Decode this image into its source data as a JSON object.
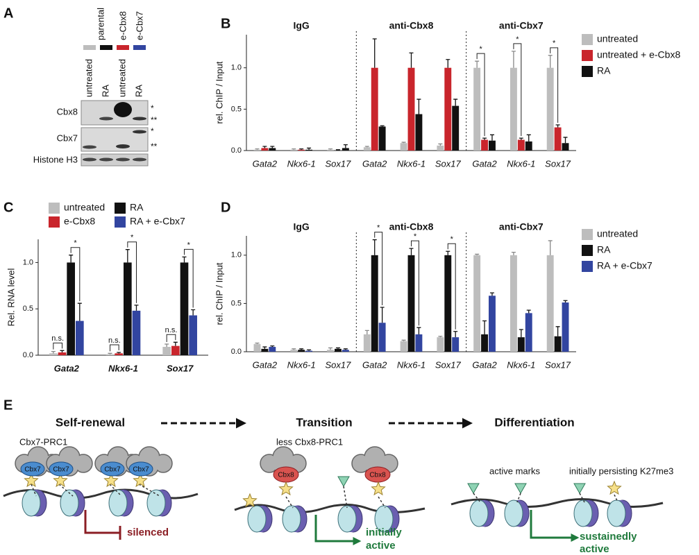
{
  "panel_labels": [
    "A",
    "B",
    "C",
    "D",
    "E"
  ],
  "panel_a": {
    "groups": [
      "parental",
      "e-Cbx8",
      "e-Cbx7"
    ],
    "lanes": [
      "untreated",
      "RA",
      "untreated",
      "RA"
    ],
    "rows": [
      "Cbx8",
      "Cbx7",
      "Histone H3"
    ],
    "markers": [
      "*",
      "**",
      "*",
      "**"
    ]
  },
  "chart_data": [
    {
      "type": "bar",
      "ylabel": "rel. ChIP / Input",
      "legend": "right",
      "groups": [
        "IgG",
        "anti-Cbx8",
        "anti-Cbx7"
      ],
      "categories": [
        "Gata2",
        "Nkx6-1",
        "Sox17",
        "Gata2",
        "Nkx6-1",
        "Sox17",
        "Gata2",
        "Nkx6-1",
        "Sox17"
      ],
      "ylim": [
        0,
        1.4
      ],
      "yticks": [
        {
          "value": 0,
          "label": "0.0"
        },
        0.5,
        {
          "value": 1,
          "label": "1.0"
        }
      ],
      "series": [
        {
          "name": "untreated",
          "color": "#bdbdbd",
          "values": [
            0.01,
            0.01,
            0.01,
            0.04,
            0.09,
            0.06,
            1.0,
            1.0,
            1.0
          ],
          "errors": [
            0.01,
            0.01,
            0.01,
            0.01,
            0.01,
            0.02,
            0.08,
            0.2,
            0.15
          ]
        },
        {
          "name": "untreated + e-Cbx8",
          "color": "#c9252c",
          "values": [
            0.03,
            0.01,
            0.0,
            1.0,
            1.0,
            1.0,
            0.13,
            0.13,
            0.28
          ],
          "errors": [
            0.02,
            0.01,
            0.01,
            0.35,
            0.18,
            0.1,
            0.02,
            0.02,
            0.03
          ]
        },
        {
          "name": "RA",
          "color": "#111111",
          "values": [
            0.03,
            0.01,
            0.03,
            0.29,
            0.44,
            0.54,
            0.12,
            0.11,
            0.09
          ],
          "errors": [
            0.02,
            0.02,
            0.04,
            0.01,
            0.18,
            0.08,
            0.07,
            0.08,
            0.07
          ]
        }
      ],
      "significance": [
        {
          "between": [
            "untreated",
            "untreated + e-Cbx8"
          ],
          "labels": [
            null,
            null,
            null,
            null,
            null,
            null,
            "*",
            "*",
            "*"
          ]
        }
      ]
    },
    {
      "type": "bar",
      "ylabel": "Rel. RNA level",
      "legend": "top",
      "categories": [
        "Gata2",
        "Nkx6-1",
        "Sox17"
      ],
      "ylim": [
        0,
        1.25
      ],
      "yticks": [
        {
          "value": 0,
          "label": "0.0"
        },
        0.5,
        {
          "value": 1,
          "label": "1.0"
        }
      ],
      "series": [
        {
          "name": "untreated",
          "color": "#bdbdbd",
          "values": [
            0.02,
            0.01,
            0.09
          ],
          "errors": [
            0.02,
            0.01,
            0.03
          ]
        },
        {
          "name": "e-Cbx8",
          "color": "#c9252c",
          "values": [
            0.03,
            0.02,
            0.1
          ],
          "errors": [
            0.02,
            0.01,
            0.04
          ]
        },
        {
          "name": "RA",
          "color": "#111111",
          "values": [
            1.0,
            1.0,
            1.0
          ],
          "errors": [
            0.08,
            0.14,
            0.06
          ]
        },
        {
          "name": "RA + e-Cbx7",
          "color": "#3245a0",
          "values": [
            0.37,
            0.48,
            0.43
          ],
          "errors": [
            0.19,
            0.06,
            0.06
          ]
        }
      ],
      "significance": [
        {
          "between": [
            "untreated",
            "e-Cbx8"
          ],
          "labels": [
            "n.s.",
            "n.s.",
            "n.s."
          ]
        },
        {
          "between": [
            "RA",
            "RA + e-Cbx7"
          ],
          "labels": [
            "*",
            "*",
            "*"
          ]
        }
      ]
    },
    {
      "type": "bar",
      "ylabel": "rel. ChIP / Input",
      "legend": "right",
      "groups": [
        "IgG",
        "anti-Cbx8",
        "anti-Cbx7"
      ],
      "categories": [
        "Gata2",
        "Nkx6-1",
        "Sox17",
        "Gata2",
        "Nkx6-1",
        "Sox17",
        "Gata2",
        "Nkx6-1",
        "Sox17"
      ],
      "ylim": [
        0,
        1.2
      ],
      "yticks": [
        {
          "value": 0,
          "label": "0.0"
        },
        0.5,
        {
          "value": 1,
          "label": "1.0"
        }
      ],
      "series": [
        {
          "name": "untreated",
          "color": "#bdbdbd",
          "values": [
            0.08,
            0.02,
            0.02,
            0.18,
            0.11,
            0.15,
            1.0,
            1.0,
            1.0
          ],
          "errors": [
            0.01,
            0.01,
            0.02,
            0.04,
            0.01,
            0.01,
            0.01,
            0.03,
            0.15
          ]
        },
        {
          "name": "RA",
          "color": "#111111",
          "values": [
            0.03,
            0.02,
            0.03,
            1.0,
            1.0,
            1.0,
            0.18,
            0.15,
            0.16
          ],
          "errors": [
            0.02,
            0.01,
            0.01,
            0.16,
            0.07,
            0.04,
            0.14,
            0.08,
            0.1
          ]
        },
        {
          "name": "RA + e-Cbx7",
          "color": "#3245a0",
          "values": [
            0.05,
            0.01,
            0.02,
            0.3,
            0.18,
            0.15,
            0.58,
            0.4,
            0.51
          ],
          "errors": [
            0.01,
            0.01,
            0.01,
            0.16,
            0.07,
            0.06,
            0.03,
            0.03,
            0.02
          ]
        }
      ],
      "significance": [
        {
          "between": [
            "RA",
            "RA + e-Cbx7"
          ],
          "labels": [
            null,
            null,
            null,
            "*",
            "*",
            "*",
            null,
            null,
            null
          ]
        }
      ]
    }
  ],
  "panel_e": {
    "stages": [
      "Self-renewal",
      "Transition",
      "Differentiation"
    ],
    "complexes": [
      "Cbx7-PRC1",
      "less Cbx8-PRC1"
    ],
    "proteins": [
      "Cbx7",
      "Cbx8"
    ],
    "marks": [
      "active marks",
      "initially persisting K27me3"
    ],
    "outcomes": [
      [
        "silenced"
      ],
      [
        "initially",
        "active"
      ],
      [
        "sustainedly",
        "active"
      ]
    ]
  }
}
